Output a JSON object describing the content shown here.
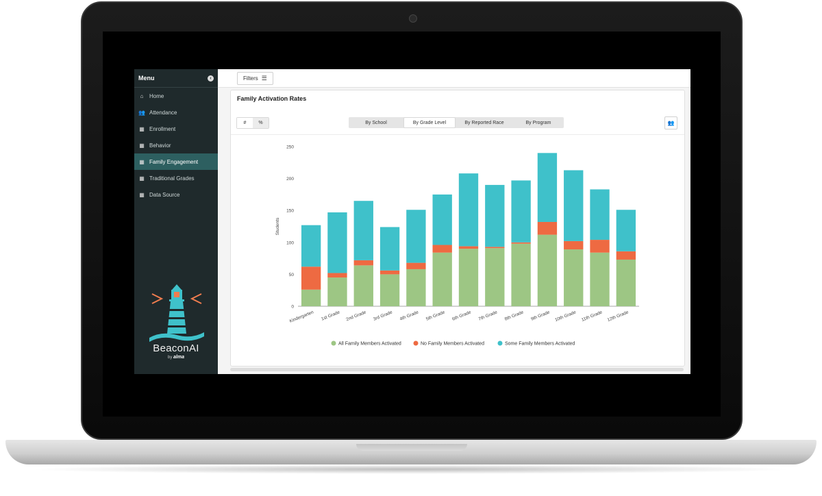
{
  "sidebar": {
    "menu_label": "Menu",
    "items": [
      {
        "label": "Home",
        "icon": "home-icon",
        "glyph": "⌂"
      },
      {
        "label": "Attendance",
        "icon": "people-icon",
        "glyph": "👥"
      },
      {
        "label": "Enrollment",
        "icon": "table-icon",
        "glyph": "▦"
      },
      {
        "label": "Behavior",
        "icon": "table-icon",
        "glyph": "▦"
      },
      {
        "label": "Family Engagement",
        "icon": "table-icon",
        "glyph": "▦"
      },
      {
        "label": "Traditional Grades",
        "icon": "table-icon",
        "glyph": "▦"
      },
      {
        "label": "Data Source",
        "icon": "table-icon",
        "glyph": "▦"
      }
    ],
    "active_index": 4,
    "brand": {
      "name": "BeaconAI",
      "by": "by",
      "partner": "alma"
    }
  },
  "topbar": {
    "filters_label": "Filters"
  },
  "card": {
    "title": "Family Activation Rates",
    "toggle": [
      "#",
      "%"
    ],
    "tabs": [
      "By School",
      "By Grade Level",
      "By Reported Race",
      "By Program"
    ],
    "active_tab": 1
  },
  "chart_data": {
    "type": "bar",
    "stacked": true,
    "categories": [
      "Kindergarten",
      "1st Grade",
      "2nd Grade",
      "3rd Grade",
      "4th Grade",
      "5th Grade",
      "6th Grade",
      "7th Grade",
      "8th Grade",
      "9th Grade",
      "10th Grade",
      "11th Grade",
      "12th Grade"
    ],
    "series": [
      {
        "name": "All Family Members Activated",
        "color": "#9dc684",
        "values": [
          26,
          45,
          64,
          50,
          58,
          84,
          90,
          91,
          98,
          112,
          89,
          84,
          73
        ]
      },
      {
        "name": "No Family Members Activated",
        "color": "#ee6a42",
        "values": [
          36,
          7,
          8,
          6,
          10,
          12,
          4,
          2,
          2,
          20,
          13,
          20,
          13
        ]
      },
      {
        "name": "Some Family Members Activated",
        "color": "#3fc1ca",
        "values": [
          65,
          95,
          93,
          68,
          83,
          79,
          114,
          97,
          97,
          108,
          111,
          79,
          65
        ]
      }
    ],
    "ylabel": "Students",
    "ylim": [
      0,
      250
    ],
    "yticks": [
      0,
      50,
      100,
      150,
      200,
      250
    ],
    "legend": "bottom"
  }
}
